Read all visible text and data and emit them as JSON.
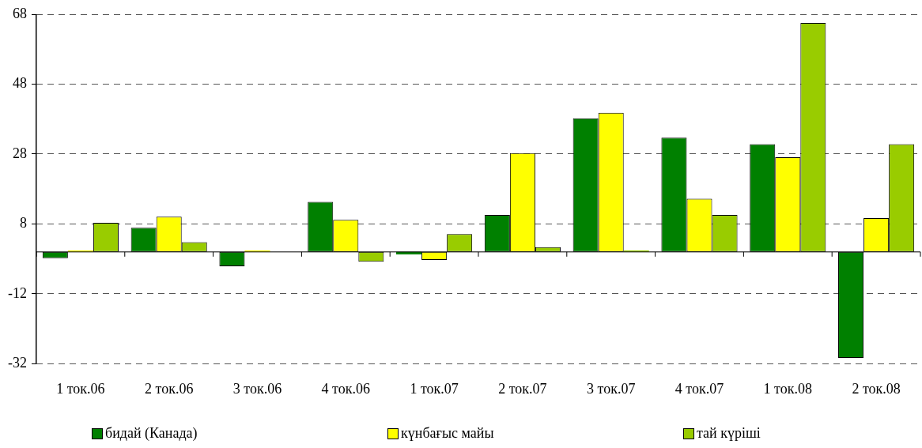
{
  "chart_data": {
    "type": "bar",
    "categories": [
      "1 ток.06",
      "2 ток.06",
      "3 ток.06",
      "4 ток.06",
      "1 ток.07",
      "2 ток.07",
      "3 ток.07",
      "4 ток.07",
      "1 ток.08",
      "2 ток.08"
    ],
    "series": [
      {
        "name": "бидай (Канада)",
        "color": "#008000",
        "values": [
          -1.8,
          6.9,
          -4.1,
          14.3,
          -0.7,
          10.6,
          38.2,
          32.7,
          30.8,
          -30.3
        ]
      },
      {
        "name": "күнбағыс майы",
        "color": "#ffff00",
        "values": [
          0.4,
          10.1,
          0.4,
          9.2,
          -2.3,
          28.3,
          39.8,
          15.2,
          27.1,
          9.7
        ]
      },
      {
        "name": "тай күріші",
        "color": "#99cc00",
        "values": [
          8.3,
          2.8,
          0,
          -2.8,
          5.1,
          1.4,
          0.4,
          10.6,
          65.5,
          30.8
        ]
      }
    ],
    "ylim": [
      -32,
      68
    ],
    "yticks": [
      -32,
      -12,
      8,
      28,
      48,
      68
    ],
    "grid": "y",
    "legend": "bottom",
    "ref_lines": [
      {
        "axis": "y",
        "value": 0,
        "color": "#000000",
        "line_style": "solid"
      }
    ]
  }
}
